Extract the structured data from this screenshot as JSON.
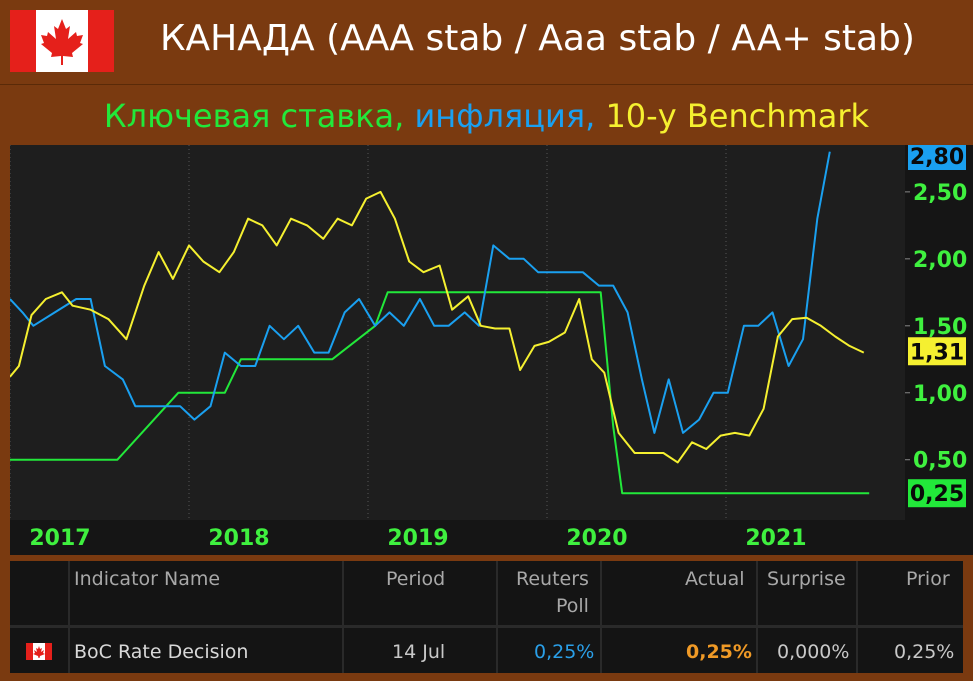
{
  "header": {
    "title": "КАНАДА (ААА stab / Aaa stab / AA+ stab)",
    "subtitle_part1": "Ключевая ставка,",
    "subtitle_part2": "инфляция,",
    "subtitle_part3": "10-у Benchmark"
  },
  "colors": {
    "rate": "#22e83a",
    "inflation": "#1aa0f0",
    "bond": "#f5f030",
    "axis_text": "#3ff03f",
    "background": "#7a3a10"
  },
  "chart_data": {
    "type": "line",
    "x_ticks": [
      "2017",
      "2018",
      "2019",
      "2020",
      "2021"
    ],
    "y_ticks": [
      "0,50",
      "1,00",
      "1,50",
      "2,00",
      "2,50"
    ],
    "ylim": [
      0.05,
      2.85
    ],
    "xlim": [
      2016.75,
      2021.75
    ],
    "last_value_labels": {
      "inflation": "2,80",
      "bond": "1,31",
      "rate": "0,25"
    },
    "series": [
      {
        "key": "rate",
        "points": [
          [
            2016.75,
            0.5
          ],
          [
            2017.35,
            0.5
          ],
          [
            2017.52,
            0.75
          ],
          [
            2017.69,
            1.0
          ],
          [
            2017.95,
            1.0
          ],
          [
            2018.04,
            1.25
          ],
          [
            2018.55,
            1.25
          ],
          [
            2018.79,
            1.5
          ],
          [
            2018.86,
            1.75
          ],
          [
            2019.75,
            1.75
          ],
          [
            2020.05,
            1.75
          ],
          [
            2020.12,
            0.75
          ],
          [
            2020.17,
            0.25
          ],
          [
            2021.55,
            0.25
          ]
        ]
      },
      {
        "key": "inflation",
        "points": [
          [
            2016.75,
            1.7
          ],
          [
            2016.82,
            1.6
          ],
          [
            2016.88,
            1.5
          ],
          [
            2017.0,
            1.6
          ],
          [
            2017.12,
            1.7
          ],
          [
            2017.2,
            1.7
          ],
          [
            2017.28,
            1.2
          ],
          [
            2017.38,
            1.1
          ],
          [
            2017.45,
            0.9
          ],
          [
            2017.55,
            0.9
          ],
          [
            2017.7,
            0.9
          ],
          [
            2017.78,
            0.8
          ],
          [
            2017.87,
            0.9
          ],
          [
            2017.95,
            1.3
          ],
          [
            2018.04,
            1.2
          ],
          [
            2018.12,
            1.2
          ],
          [
            2018.2,
            1.5
          ],
          [
            2018.28,
            1.4
          ],
          [
            2018.36,
            1.5
          ],
          [
            2018.45,
            1.3
          ],
          [
            2018.53,
            1.3
          ],
          [
            2018.62,
            1.6
          ],
          [
            2018.7,
            1.7
          ],
          [
            2018.79,
            1.5
          ],
          [
            2018.87,
            1.6
          ],
          [
            2018.95,
            1.5
          ],
          [
            2019.04,
            1.7
          ],
          [
            2019.12,
            1.5
          ],
          [
            2019.2,
            1.5
          ],
          [
            2019.29,
            1.6
          ],
          [
            2019.37,
            1.5
          ],
          [
            2019.45,
            2.1
          ],
          [
            2019.54,
            2.0
          ],
          [
            2019.62,
            2.0
          ],
          [
            2019.7,
            1.9
          ],
          [
            2019.79,
            1.9
          ],
          [
            2019.87,
            1.9
          ],
          [
            2019.95,
            1.9
          ],
          [
            2020.04,
            1.8
          ],
          [
            2020.12,
            1.8
          ],
          [
            2020.2,
            1.6
          ],
          [
            2020.28,
            1.1
          ],
          [
            2020.35,
            0.7
          ],
          [
            2020.43,
            1.1
          ],
          [
            2020.51,
            0.7
          ],
          [
            2020.6,
            0.8
          ],
          [
            2020.68,
            1.0
          ],
          [
            2020.76,
            1.0
          ],
          [
            2020.85,
            1.5
          ],
          [
            2020.93,
            1.5
          ],
          [
            2021.01,
            1.6
          ],
          [
            2021.1,
            1.2
          ],
          [
            2021.18,
            1.4
          ],
          [
            2021.26,
            2.3
          ],
          [
            2021.33,
            2.8
          ]
        ]
      },
      {
        "key": "bond",
        "points": [
          [
            2016.75,
            1.12
          ],
          [
            2016.8,
            1.2
          ],
          [
            2016.87,
            1.58
          ],
          [
            2016.95,
            1.7
          ],
          [
            2017.04,
            1.75
          ],
          [
            2017.1,
            1.65
          ],
          [
            2017.2,
            1.62
          ],
          [
            2017.3,
            1.55
          ],
          [
            2017.4,
            1.4
          ],
          [
            2017.5,
            1.8
          ],
          [
            2017.58,
            2.05
          ],
          [
            2017.66,
            1.85
          ],
          [
            2017.75,
            2.1
          ],
          [
            2017.83,
            1.98
          ],
          [
            2017.92,
            1.9
          ],
          [
            2018.0,
            2.05
          ],
          [
            2018.08,
            2.3
          ],
          [
            2018.16,
            2.25
          ],
          [
            2018.24,
            2.1
          ],
          [
            2018.32,
            2.3
          ],
          [
            2018.41,
            2.25
          ],
          [
            2018.5,
            2.15
          ],
          [
            2018.58,
            2.3
          ],
          [
            2018.66,
            2.25
          ],
          [
            2018.74,
            2.45
          ],
          [
            2018.82,
            2.5
          ],
          [
            2018.9,
            2.3
          ],
          [
            2018.98,
            1.98
          ],
          [
            2019.06,
            1.9
          ],
          [
            2019.15,
            1.95
          ],
          [
            2019.22,
            1.62
          ],
          [
            2019.31,
            1.72
          ],
          [
            2019.38,
            1.5
          ],
          [
            2019.46,
            1.48
          ],
          [
            2019.54,
            1.48
          ],
          [
            2019.6,
            1.17
          ],
          [
            2019.68,
            1.35
          ],
          [
            2019.76,
            1.38
          ],
          [
            2019.85,
            1.45
          ],
          [
            2019.93,
            1.7
          ],
          [
            2020.0,
            1.25
          ],
          [
            2020.07,
            1.15
          ],
          [
            2020.15,
            0.7
          ],
          [
            2020.24,
            0.55
          ],
          [
            2020.32,
            0.55
          ],
          [
            2020.4,
            0.55
          ],
          [
            2020.48,
            0.48
          ],
          [
            2020.56,
            0.63
          ],
          [
            2020.64,
            0.58
          ],
          [
            2020.72,
            0.68
          ],
          [
            2020.8,
            0.7
          ],
          [
            2020.88,
            0.68
          ],
          [
            2020.96,
            0.88
          ],
          [
            2021.04,
            1.42
          ],
          [
            2021.12,
            1.55
          ],
          [
            2021.2,
            1.56
          ],
          [
            2021.28,
            1.5
          ],
          [
            2021.36,
            1.42
          ],
          [
            2021.44,
            1.35
          ],
          [
            2021.52,
            1.3
          ]
        ]
      }
    ]
  },
  "table": {
    "headers": {
      "indicator": "Indicator Name",
      "period": "Period",
      "poll_line1": "Reuters",
      "poll_line2": "Poll",
      "actual": "Actual",
      "surprise": "Surprise",
      "prior": "Prior"
    },
    "row": {
      "indicator": "BoC Rate Decision",
      "period": "14 Jul",
      "poll": "0,25%",
      "actual": "0,25%",
      "surprise": "0,000%",
      "prior": "0,25%",
      "poll_color": "#2a9fe8",
      "actual_color": "#f09a26"
    }
  }
}
